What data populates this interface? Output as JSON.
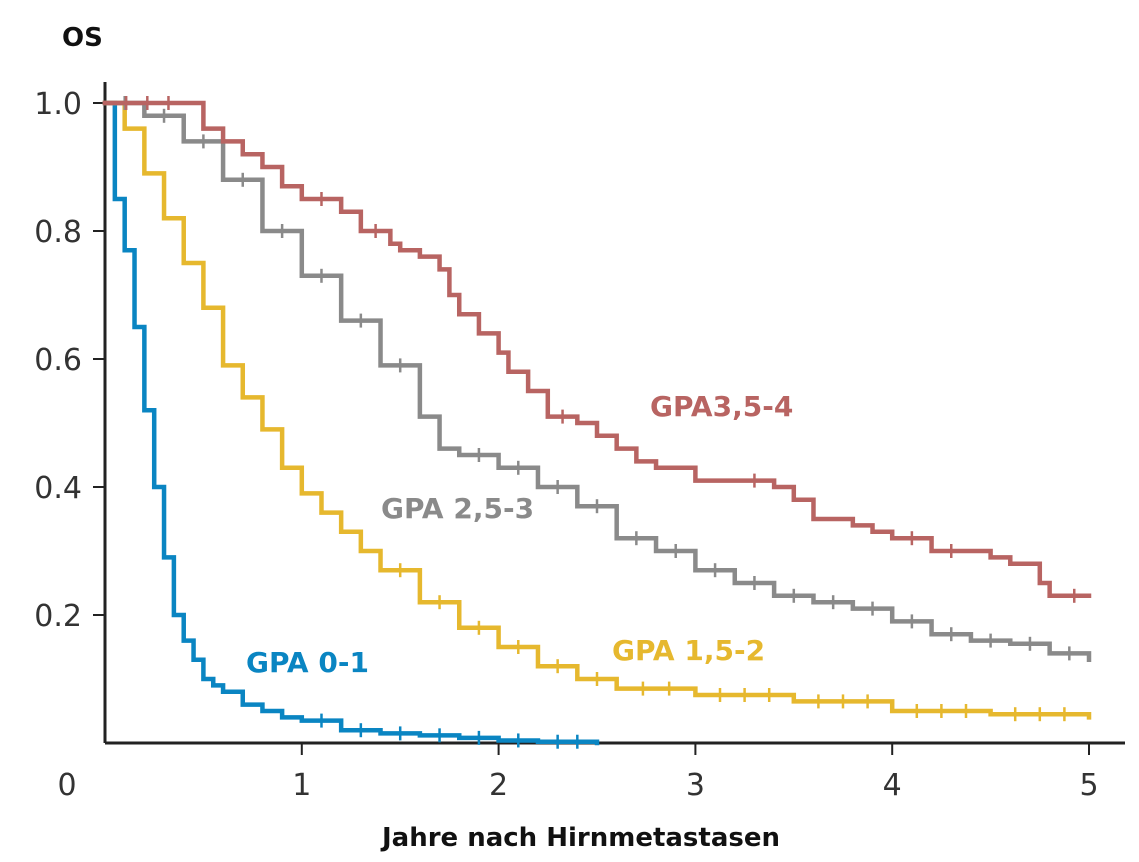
{
  "chart_data": {
    "type": "line",
    "title": "",
    "ylabel": "OS",
    "xlabel": "Jahre nach Hirnmetastasen",
    "xlim": [
      0,
      5
    ],
    "ylim": [
      0,
      1.0
    ],
    "x_ticks": [
      0,
      1,
      2,
      3,
      4,
      5
    ],
    "x_tick_labels": [
      "0",
      "1",
      "2",
      "3",
      "4",
      "5"
    ],
    "y_ticks": [
      0.2,
      0.4,
      0.6,
      0.8,
      1.0
    ],
    "y_tick_labels": [
      "0.2",
      "0.4",
      "0.6",
      "0.8",
      "1.0"
    ],
    "grid": false,
    "series": [
      {
        "name": "GPA 0-1",
        "label": "GPA 0-1",
        "color": "#0a85c2",
        "x": [
          0,
          0.05,
          0.1,
          0.15,
          0.2,
          0.25,
          0.3,
          0.35,
          0.4,
          0.45,
          0.5,
          0.55,
          0.6,
          0.7,
          0.8,
          0.9,
          1.0,
          1.2,
          1.4,
          1.6,
          1.8,
          2.0,
          2.2,
          2.5
        ],
        "values": [
          1.0,
          0.85,
          0.77,
          0.65,
          0.52,
          0.4,
          0.29,
          0.2,
          0.16,
          0.13,
          0.1,
          0.09,
          0.08,
          0.06,
          0.05,
          0.04,
          0.035,
          0.02,
          0.015,
          0.012,
          0.008,
          0.004,
          0.002,
          0.0
        ]
      },
      {
        "name": "GPA 1,5-2",
        "label": "GPA 1,5-2",
        "color": "#e6b82e",
        "x": [
          0,
          0.1,
          0.2,
          0.3,
          0.4,
          0.5,
          0.6,
          0.7,
          0.8,
          0.9,
          1.0,
          1.1,
          1.2,
          1.3,
          1.4,
          1.6,
          1.8,
          2.0,
          2.2,
          2.4,
          2.6,
          3.0,
          3.5,
          4.0,
          4.5,
          5.0
        ],
        "values": [
          1.0,
          0.96,
          0.89,
          0.82,
          0.75,
          0.68,
          0.59,
          0.54,
          0.49,
          0.43,
          0.39,
          0.36,
          0.33,
          0.3,
          0.27,
          0.22,
          0.18,
          0.15,
          0.12,
          0.1,
          0.085,
          0.075,
          0.065,
          0.05,
          0.045,
          0.04
        ]
      },
      {
        "name": "GPA 2,5-3",
        "label": "GPA 2,5-3",
        "color": "#8a8a8a",
        "x": [
          0,
          0.2,
          0.4,
          0.6,
          0.8,
          1.0,
          1.2,
          1.4,
          1.6,
          1.7,
          1.8,
          2.0,
          2.2,
          2.4,
          2.6,
          2.8,
          3.0,
          3.2,
          3.4,
          3.6,
          3.8,
          4.0,
          4.2,
          4.4,
          4.6,
          4.8,
          5.0
        ],
        "values": [
          1.0,
          0.98,
          0.94,
          0.88,
          0.8,
          0.73,
          0.66,
          0.59,
          0.51,
          0.46,
          0.45,
          0.43,
          0.4,
          0.37,
          0.32,
          0.3,
          0.27,
          0.25,
          0.23,
          0.22,
          0.21,
          0.19,
          0.17,
          0.16,
          0.155,
          0.14,
          0.13
        ]
      },
      {
        "name": "GPA3,5-4",
        "label": "GPA3,5-4",
        "color": "#b86462",
        "x": [
          0,
          0.43,
          0.5,
          0.6,
          0.7,
          0.8,
          0.9,
          1.0,
          1.2,
          1.3,
          1.45,
          1.5,
          1.6,
          1.7,
          1.75,
          1.8,
          1.9,
          2.0,
          2.05,
          2.15,
          2.25,
          2.4,
          2.5,
          2.6,
          2.7,
          2.8,
          2.9,
          3.0,
          3.1,
          3.2,
          3.4,
          3.5,
          3.6,
          3.7,
          3.8,
          3.9,
          4.0,
          4.2,
          4.4,
          4.5,
          4.6,
          4.7,
          4.75,
          4.8,
          4.85,
          5.0
        ],
        "values": [
          1.0,
          1.0,
          0.96,
          0.94,
          0.92,
          0.9,
          0.87,
          0.85,
          0.83,
          0.8,
          0.78,
          0.77,
          0.76,
          0.74,
          0.7,
          0.67,
          0.64,
          0.61,
          0.58,
          0.55,
          0.51,
          0.5,
          0.48,
          0.46,
          0.44,
          0.43,
          0.43,
          0.41,
          0.41,
          0.41,
          0.4,
          0.38,
          0.35,
          0.35,
          0.34,
          0.33,
          0.32,
          0.3,
          0.3,
          0.29,
          0.28,
          0.28,
          0.25,
          0.23,
          0.23,
          0.23
        ]
      }
    ],
    "annotations": [
      {
        "text": "GPA3,5-4",
        "series": "GPA3,5-4"
      },
      {
        "text": "GPA 2,5-3",
        "series": "GPA 2,5-3"
      },
      {
        "text": "GPA 1,5-2",
        "series": "GPA 1,5-2"
      },
      {
        "text": "GPA 0-1",
        "series": "GPA 0-1"
      }
    ]
  }
}
